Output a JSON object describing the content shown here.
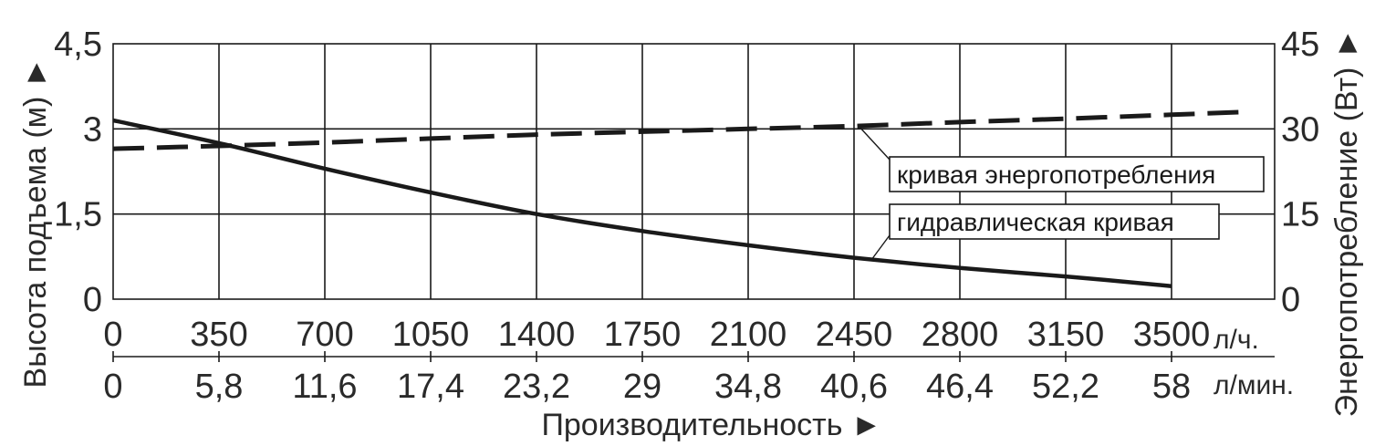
{
  "chart_data": {
    "type": "line",
    "x_primary": {
      "unit": "л/ч.",
      "ticks": [
        "0",
        "350",
        "700",
        "1050",
        "1400",
        "1750",
        "2100",
        "2450",
        "2800",
        "3150",
        "3500"
      ],
      "range": [
        0,
        3500
      ]
    },
    "x_secondary": {
      "unit": "л/мин.",
      "ticks": [
        "0",
        "5,8",
        "11,6",
        "17,4",
        "23,2",
        "29",
        "34,8",
        "40,6",
        "46,4",
        "52,2",
        "58"
      ]
    },
    "xlabel": "Производительность ►",
    "y_left": {
      "label": "Высота подъема (м) ►",
      "ticks": [
        "0",
        "1,5",
        "3",
        "4,5"
      ],
      "range": [
        0,
        4.5
      ]
    },
    "y_right": {
      "label": "Энергопотребление (Вт) ►",
      "ticks": [
        "0",
        "15",
        "30",
        "45"
      ],
      "range": [
        0,
        45
      ]
    },
    "grid": true,
    "series": [
      {
        "name": "гидравлическая кривая",
        "axis": "left",
        "style": "solid",
        "x": [
          0,
          350,
          700,
          1050,
          1400,
          1750,
          2100,
          2450,
          2800,
          3150,
          3500
        ],
        "y": [
          3.15,
          2.75,
          2.3,
          1.88,
          1.5,
          1.2,
          0.95,
          0.73,
          0.55,
          0.4,
          0.23
        ]
      },
      {
        "name": "кривая энергопотребления",
        "axis": "right",
        "style": "dashed",
        "x": [
          0,
          350,
          700,
          1050,
          1400,
          1750,
          2100,
          2450,
          2800,
          3150,
          3500,
          3750
        ],
        "y": [
          26.5,
          27.0,
          27.6,
          28.3,
          29.0,
          29.5,
          30.0,
          30.5,
          31.2,
          31.8,
          32.5,
          33.0
        ]
      }
    ],
    "annotations": [
      {
        "text": "кривая энергопотребления",
        "series": "кривая энергопотребления"
      },
      {
        "text": "гидравлическая кривая",
        "series": "гидравлическая кривая"
      }
    ]
  }
}
